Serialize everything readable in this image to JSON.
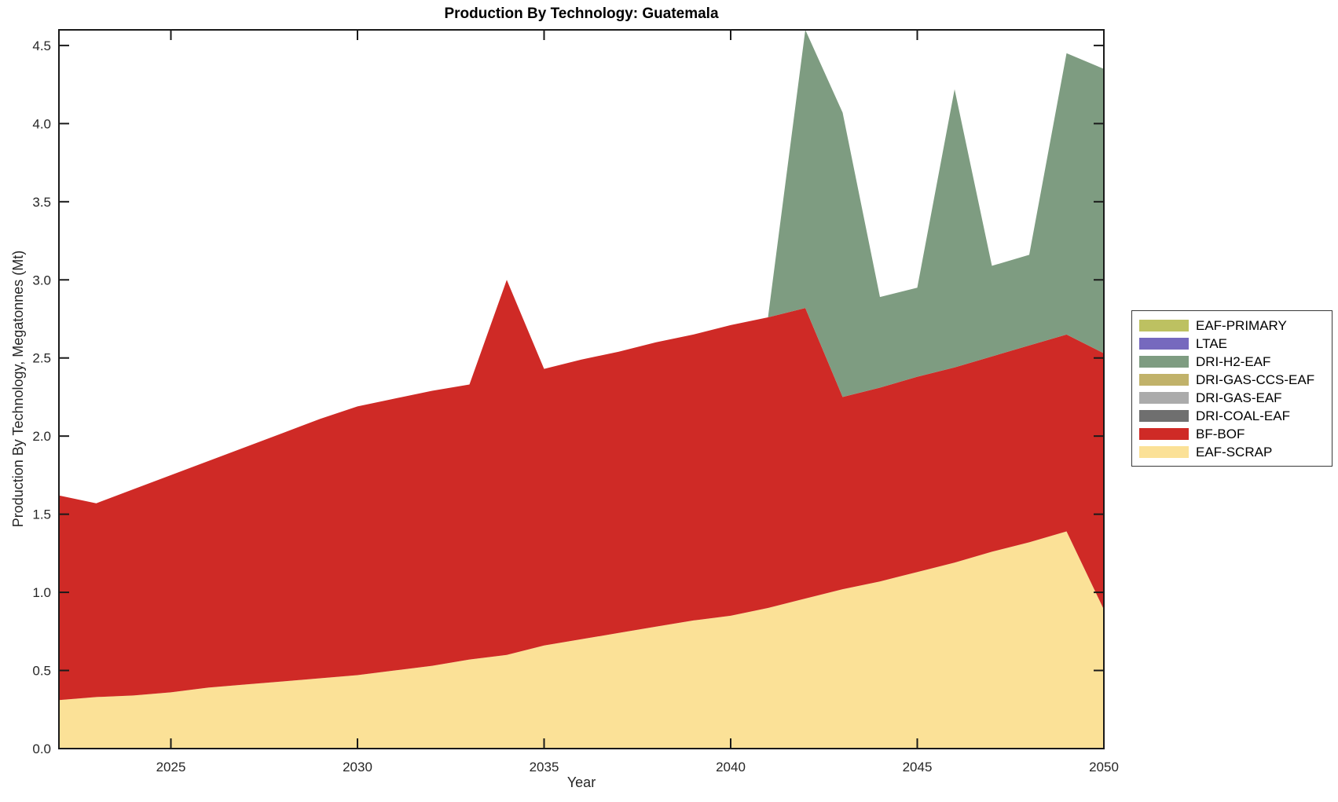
{
  "chart_data": {
    "type": "area",
    "stacked": true,
    "title": "Production By Technology: Guatemala",
    "xlabel": "Year",
    "ylabel": "Production By Technology, Megatonnes (Mt)",
    "xlim": [
      2022,
      2050
    ],
    "ylim": [
      0,
      4.6
    ],
    "grid": false,
    "legend_position": "right-outside",
    "x": [
      2022,
      2023,
      2024,
      2025,
      2026,
      2027,
      2028,
      2029,
      2030,
      2031,
      2032,
      2033,
      2034,
      2035,
      2036,
      2037,
      2038,
      2039,
      2040,
      2041,
      2042,
      2043,
      2044,
      2045,
      2046,
      2047,
      2048,
      2049,
      2050
    ],
    "xtick_values": [
      2025,
      2030,
      2035,
      2040,
      2045,
      2050
    ],
    "xtick_labels": [
      "2025",
      "2030",
      "2035",
      "2040",
      "2045",
      "2050"
    ],
    "ytick_values": [
      0,
      0.5,
      1,
      1.5,
      2,
      2.5,
      3,
      3.5,
      4,
      4.5
    ],
    "ytick_labels": [
      "0.0",
      "0.5",
      "1.0",
      "1.5",
      "2.0",
      "2.5",
      "3.0",
      "3.5",
      "4.0",
      "4.5"
    ],
    "legend": [
      "EAF-PRIMARY",
      "LTAE",
      "DRI-H2-EAF",
      "DRI-GAS-CCS-EAF",
      "DRI-GAS-EAF",
      "DRI-COAL-EAF",
      "BF-BOF",
      "EAF-SCRAP"
    ],
    "stack_order": [
      "EAF-SCRAP",
      "BF-BOF",
      "DRI-COAL-EAF",
      "DRI-GAS-EAF",
      "DRI-GAS-CCS-EAF",
      "DRI-H2-EAF",
      "LTAE",
      "EAF-PRIMARY"
    ],
    "series": [
      {
        "name": "EAF-SCRAP",
        "color": "#FBE197",
        "values": [
          0.31,
          0.33,
          0.34,
          0.36,
          0.39,
          0.41,
          0.43,
          0.45,
          0.47,
          0.5,
          0.53,
          0.57,
          0.6,
          0.66,
          0.7,
          0.74,
          0.78,
          0.82,
          0.85,
          0.9,
          0.96,
          1.02,
          1.07,
          1.13,
          1.19,
          1.26,
          1.32,
          1.39,
          0.89
        ]
      },
      {
        "name": "BF-BOF",
        "color": "#CF2A26",
        "values": [
          1.31,
          1.24,
          1.32,
          1.39,
          1.45,
          1.52,
          1.59,
          1.66,
          1.72,
          1.74,
          1.76,
          1.76,
          2.4,
          1.77,
          1.79,
          1.8,
          1.82,
          1.83,
          1.86,
          1.86,
          1.86,
          1.23,
          1.24,
          1.25,
          1.25,
          1.25,
          1.26,
          1.26,
          1.64
        ]
      },
      {
        "name": "DRI-COAL-EAF",
        "color": "#6F6F6F",
        "values": [
          0,
          0,
          0,
          0,
          0,
          0,
          0,
          0,
          0,
          0,
          0,
          0,
          0,
          0,
          0,
          0,
          0,
          0,
          0,
          0,
          0,
          0,
          0,
          0,
          0,
          0,
          0,
          0,
          0
        ]
      },
      {
        "name": "DRI-GAS-EAF",
        "color": "#ABABAB",
        "values": [
          0,
          0,
          0,
          0,
          0,
          0,
          0,
          0,
          0,
          0,
          0,
          0,
          0,
          0,
          0,
          0,
          0,
          0,
          0,
          0,
          0,
          0,
          0,
          0,
          0,
          0,
          0,
          0,
          0
        ]
      },
      {
        "name": "DRI-GAS-CCS-EAF",
        "color": "#C1B26A",
        "values": [
          0,
          0,
          0,
          0,
          0,
          0,
          0,
          0,
          0,
          0,
          0,
          0,
          0,
          0,
          0,
          0,
          0,
          0,
          0,
          0,
          0,
          0,
          0,
          0,
          0,
          0,
          0,
          0,
          0
        ]
      },
      {
        "name": "DRI-H2-EAF",
        "color": "#7E9C81",
        "values": [
          0,
          0,
          0,
          0,
          0,
          0,
          0,
          0,
          0,
          0,
          0,
          0,
          0,
          0,
          0,
          0,
          0,
          0,
          0,
          0,
          1.78,
          1.82,
          0.58,
          0.57,
          1.78,
          0.58,
          0.58,
          1.8,
          1.82
        ]
      },
      {
        "name": "LTAE",
        "color": "#7669BE",
        "values": [
          0,
          0,
          0,
          0,
          0,
          0,
          0,
          0,
          0,
          0,
          0,
          0,
          0,
          0,
          0,
          0,
          0,
          0,
          0,
          0,
          0,
          0,
          0,
          0,
          0,
          0,
          0,
          0,
          0
        ]
      },
      {
        "name": "EAF-PRIMARY",
        "color": "#BDC161",
        "values": [
          0,
          0,
          0,
          0,
          0,
          0,
          0,
          0,
          0,
          0,
          0,
          0,
          0,
          0,
          0,
          0,
          0,
          0,
          0,
          0,
          0,
          0,
          0,
          0,
          0,
          0,
          0,
          0,
          0
        ]
      }
    ],
    "axis_color": "#1a1a1a",
    "tick_label_color": "#262626"
  }
}
